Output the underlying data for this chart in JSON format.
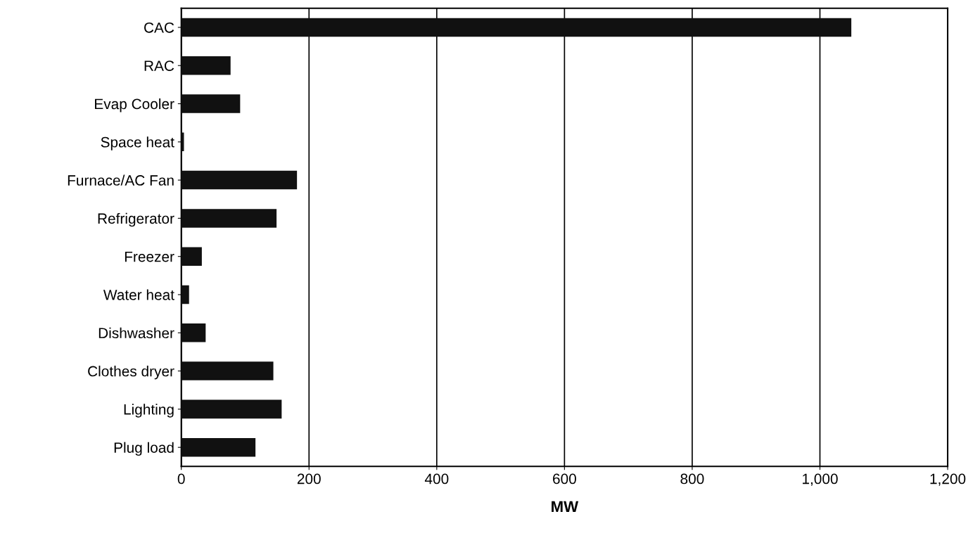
{
  "chart_data": {
    "type": "bar",
    "orientation": "horizontal",
    "xlabel": "MW",
    "categories": [
      "CAC",
      "RAC",
      "Evap Cooler",
      "Space heat",
      "Furnace/AC Fan",
      "Refrigerator",
      "Freezer",
      "Water heat",
      "Dishwasher",
      "Clothes dryer",
      "Lighting",
      "Plug load"
    ],
    "values": [
      1048,
      76,
      91,
      3,
      180,
      148,
      31,
      11,
      37,
      143,
      156,
      115
    ],
    "color": "#111111",
    "xlim": [
      0,
      1200
    ],
    "xticks": [
      0,
      {
        "value": 200,
        "label": "200"
      },
      {
        "value": 400,
        "label": "400"
      },
      {
        "value": 600,
        "label": "600"
      },
      {
        "value": 800,
        "label": "800"
      },
      {
        "value": 1000,
        "label": "1,000"
      },
      {
        "value": 1200,
        "label": "1,200"
      }
    ],
    "grid": "x",
    "legend": false
  }
}
